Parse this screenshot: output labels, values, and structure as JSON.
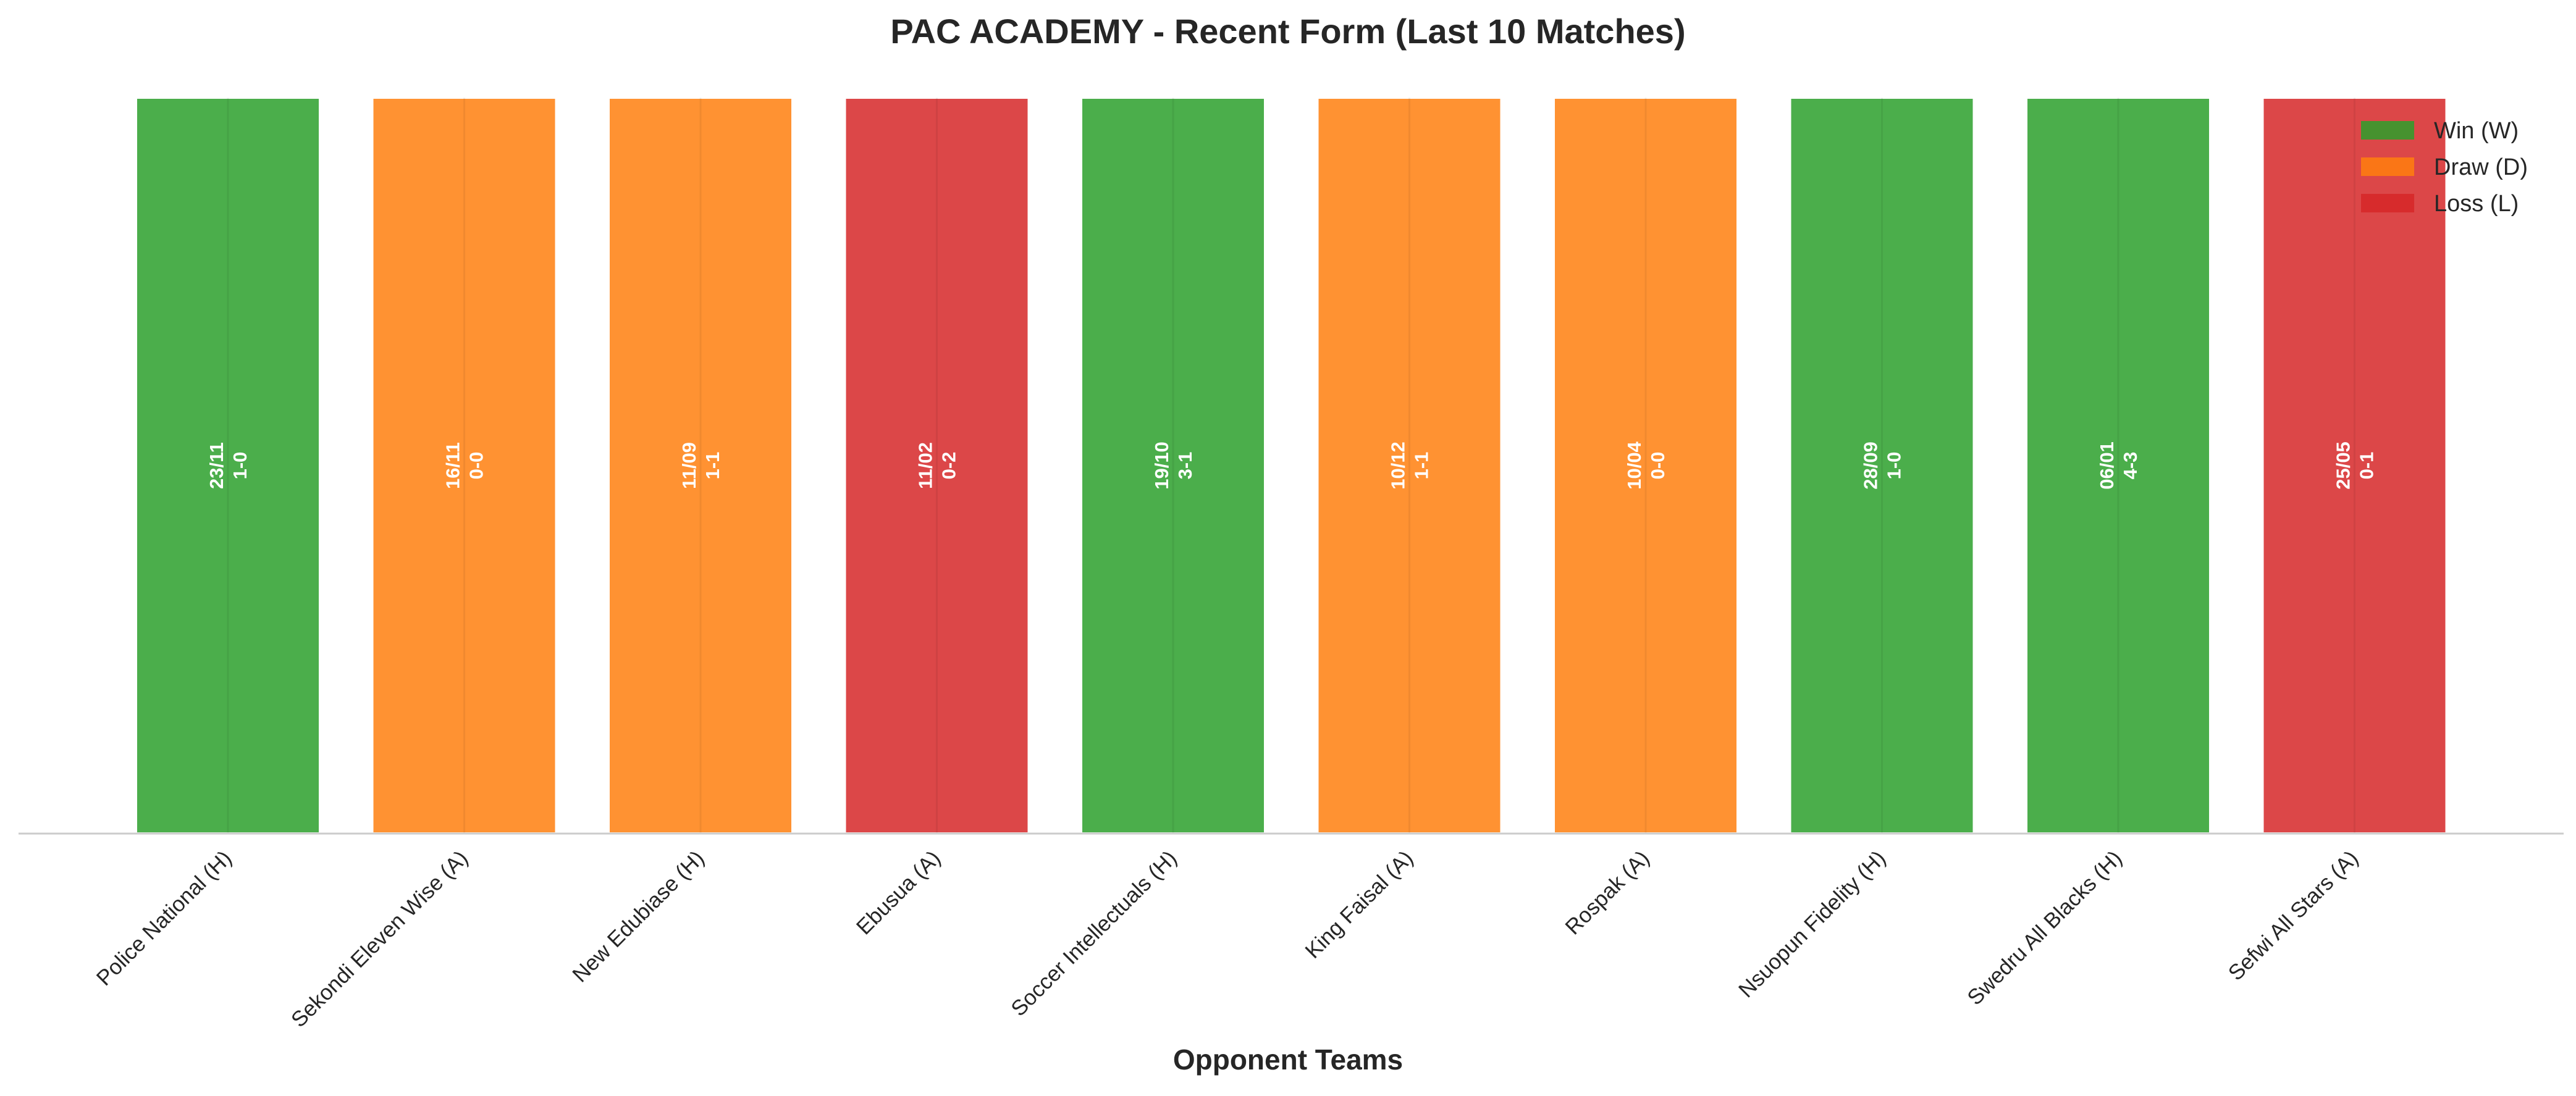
{
  "chart_data": {
    "type": "bar",
    "title": "PAC ACADEMY - Recent Form (Last 10 Matches)",
    "xlabel": "Opponent Teams",
    "ylabel": "",
    "ylim": [
      0,
      1
    ],
    "grid": false,
    "legend_position": "top-right",
    "categories": [
      "Police National (H)",
      "Sekondi Eleven Wise (A)",
      "New Edubiase (H)",
      "Ebusua (A)",
      "Soccer Intellectuals (H)",
      "King Faisal (A)",
      "Rospak (A)",
      "Nsuopun Fidelity (H)",
      "Swedru All Blacks (H)",
      "Sefwi All Stars (A)"
    ],
    "values": [
      1,
      1,
      1,
      1,
      1,
      1,
      1,
      1,
      1,
      1
    ],
    "results": [
      "W",
      "D",
      "D",
      "L",
      "W",
      "D",
      "D",
      "W",
      "W",
      "L"
    ],
    "dates": [
      "23/11",
      "16/11",
      "11/09",
      "11/02",
      "19/10",
      "10/12",
      "10/04",
      "28/09",
      "06/01",
      "25/05"
    ],
    "scores": [
      "1-0",
      "0-0",
      "1-1",
      "0-2",
      "3-1",
      "1-1",
      "0-0",
      "1-0",
      "4-3",
      "0-1"
    ],
    "legend": [
      {
        "key": "W",
        "label": "Win (W)",
        "color": "#2ca02c"
      },
      {
        "key": "D",
        "label": "Draw (D)",
        "color": "#ff7f0e"
      },
      {
        "key": "L",
        "label": "Loss (L)",
        "color": "#d62728"
      }
    ],
    "bar_alpha": 0.85
  }
}
